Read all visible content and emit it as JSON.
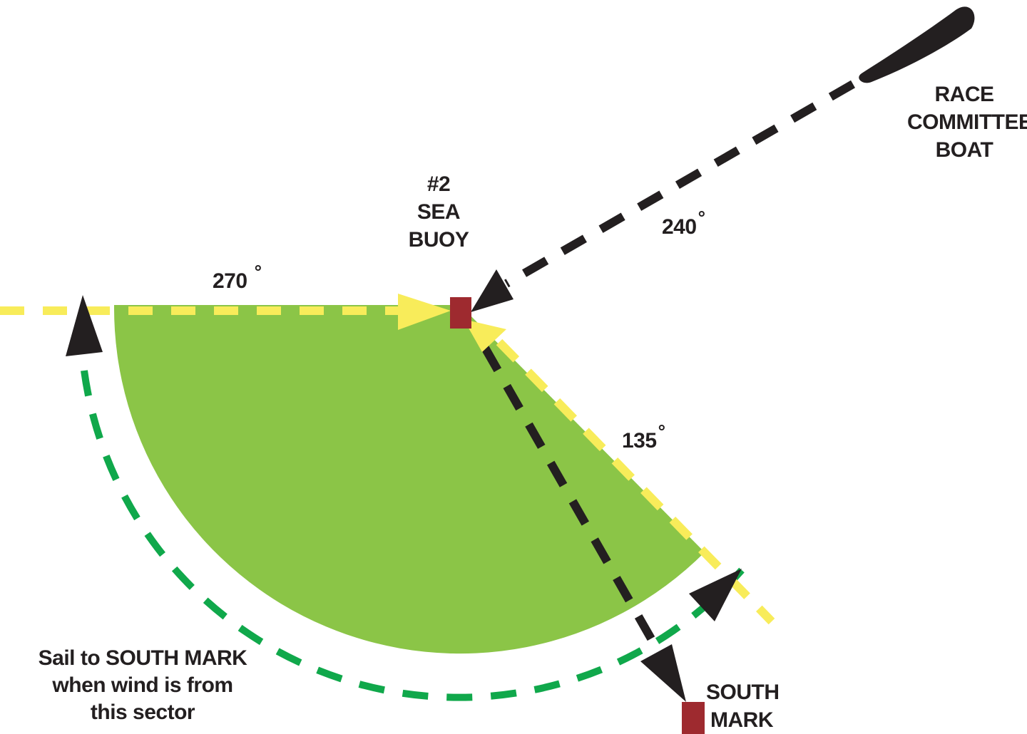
{
  "diagram": {
    "colors": {
      "sector_fill": "#8bc547",
      "yellow_course": "#f8ec5a",
      "black_course": "#231f20",
      "green_course": "#10a84b",
      "mark": "#9e2a2f"
    },
    "labels": {
      "race_committee_boat": [
        "RACE",
        "COMMITTEE",
        "BOAT"
      ],
      "sea_buoy": [
        "#2",
        "SEA",
        "BUOY"
      ],
      "south_mark": [
        "SOUTH",
        "MARK"
      ],
      "bearing_270": "270",
      "bearing_240": "240",
      "bearing_135": "135",
      "degree_symbol": "°",
      "instruction": [
        "Sail to SOUTH MARK",
        "when wind is from",
        "this sector"
      ]
    },
    "icons": {
      "committee_boat": "boat-icon",
      "sea_buoy_mark": "square-mark-icon",
      "south_mark": "square-mark-icon",
      "arrowheads": "triangle-arrow-icon"
    }
  }
}
